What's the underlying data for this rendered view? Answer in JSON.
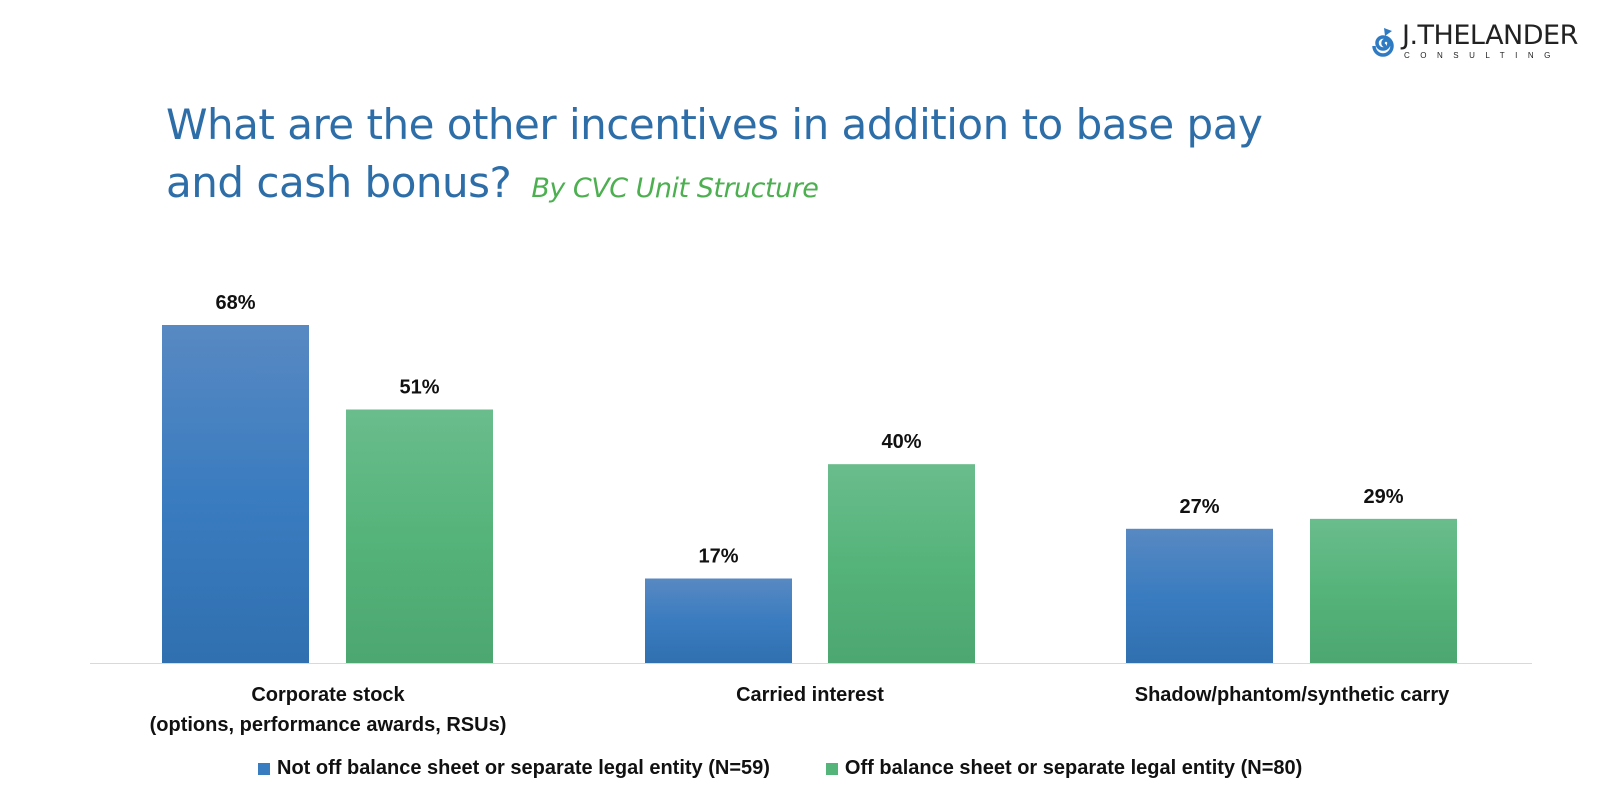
{
  "title": "What are the other incentives in addition to base pay",
  "title_line2": "and cash bonus?",
  "subtitle": "By CVC Unit Structure",
  "logo": {
    "name": "J.THELANDER",
    "sub": "CONSULTING"
  },
  "colors": {
    "title": "#2e6ea8",
    "subtitle": "#4caf50",
    "series1": "#3a7cc0",
    "series2": "#55b47a"
  },
  "chart_data": {
    "type": "bar",
    "categories": [
      "Corporate stock\n(options, performance awards, RSUs)",
      "Carried interest",
      "Shadow/phantom/synthetic carry"
    ],
    "category_lines": [
      [
        "Corporate stock",
        "(options, performance awards, RSUs)"
      ],
      [
        "Carried interest"
      ],
      [
        "Shadow/phantom/synthetic carry"
      ]
    ],
    "series": [
      {
        "name": "Not off balance sheet or separate legal entity (N=59)",
        "values": [
          68,
          17,
          27
        ],
        "labels": [
          "68%",
          "17%",
          "27%"
        ]
      },
      {
        "name": "Off balance sheet or separate legal entity (N=80)",
        "values": [
          51,
          40,
          29
        ],
        "labels": [
          "51%",
          "40%",
          "29%"
        ]
      }
    ],
    "ylim": [
      0,
      68
    ],
    "grid": false,
    "legend": "bottom"
  }
}
